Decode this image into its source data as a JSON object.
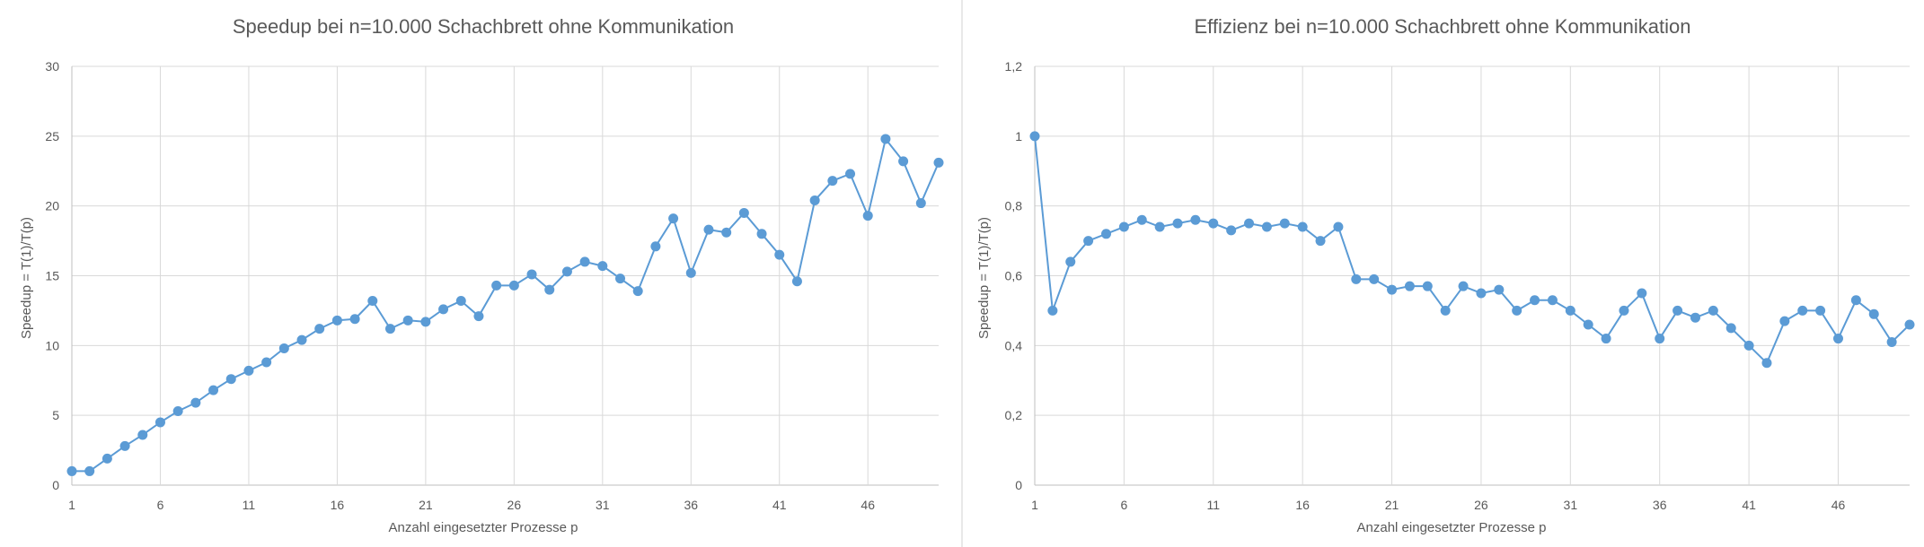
{
  "colors": {
    "series": "#5b9bd5",
    "grid": "#d9d9d9",
    "text": "#595959",
    "divider": "#d0d0d0"
  },
  "chart_data": [
    {
      "type": "line",
      "title": "Speedup bei n=10.000 Schachbrett ohne Kommunikation",
      "xlabel": "Anzahl eingesetzter Prozesse p",
      "ylabel": "Speedup = T(1)/T(p)",
      "xlim": [
        1,
        50
      ],
      "ylim": [
        0,
        30
      ],
      "xticks": [
        1,
        6,
        11,
        16,
        21,
        26,
        31,
        36,
        41,
        46
      ],
      "xtick_labels": [
        "1",
        "6",
        "11",
        "16",
        "21",
        "26",
        "31",
        "36",
        "41",
        "46"
      ],
      "yticks": [
        0,
        5,
        10,
        15,
        20,
        25,
        30
      ],
      "ytick_labels": [
        "0",
        "5",
        "10",
        "15",
        "20",
        "25",
        "30"
      ],
      "grid": true,
      "legend": "none",
      "x": [
        1,
        2,
        3,
        4,
        5,
        6,
        7,
        8,
        9,
        10,
        11,
        12,
        13,
        14,
        15,
        16,
        17,
        18,
        19,
        20,
        21,
        22,
        23,
        24,
        25,
        26,
        27,
        28,
        29,
        30,
        31,
        32,
        33,
        34,
        35,
        36,
        37,
        38,
        39,
        40,
        41,
        42,
        43,
        44,
        45,
        46,
        47,
        48,
        49,
        50
      ],
      "series": [
        {
          "values": [
            1.0,
            1.0,
            1.9,
            2.8,
            3.6,
            4.5,
            5.3,
            5.9,
            6.8,
            7.6,
            8.2,
            8.8,
            9.8,
            10.4,
            11.2,
            11.8,
            11.9,
            13.2,
            11.2,
            11.8,
            11.7,
            12.6,
            13.2,
            12.1,
            14.3,
            14.3,
            15.1,
            14.0,
            15.3,
            16.0,
            15.7,
            14.8,
            13.9,
            17.1,
            19.1,
            15.2,
            18.3,
            18.1,
            19.5,
            18.0,
            16.5,
            14.6,
            20.4,
            21.8,
            22.3,
            19.3,
            24.8,
            23.2,
            20.2,
            23.1
          ]
        }
      ]
    },
    {
      "type": "line",
      "title": "Effizienz bei n=10.000 Schachbrett ohne Kommunikation",
      "xlabel": "Anzahl eingesetzter Prozesse p",
      "ylabel": "Speedup = T(1)/T(p)",
      "xlim": [
        1,
        50
      ],
      "ylim": [
        0,
        1.2
      ],
      "xticks": [
        1,
        6,
        11,
        16,
        21,
        26,
        31,
        36,
        41,
        46
      ],
      "xtick_labels": [
        "1",
        "6",
        "11",
        "16",
        "21",
        "26",
        "31",
        "36",
        "41",
        "46"
      ],
      "yticks": [
        0,
        0.2,
        0.4,
        0.6,
        0.8,
        1.0,
        1.2
      ],
      "ytick_labels": [
        "0",
        "0,2",
        "0,4",
        "0,6",
        "0,8",
        "1",
        "1,2"
      ],
      "grid": true,
      "legend": "none",
      "x": [
        1,
        2,
        3,
        4,
        5,
        6,
        7,
        8,
        9,
        10,
        11,
        12,
        13,
        14,
        15,
        16,
        17,
        18,
        19,
        20,
        21,
        22,
        23,
        24,
        25,
        26,
        27,
        28,
        29,
        30,
        31,
        32,
        33,
        34,
        35,
        36,
        37,
        38,
        39,
        40,
        41,
        42,
        43,
        44,
        45,
        46,
        47,
        48,
        49,
        50
      ],
      "series": [
        {
          "values": [
            1.0,
            0.5,
            0.64,
            0.7,
            0.72,
            0.74,
            0.76,
            0.74,
            0.75,
            0.76,
            0.75,
            0.73,
            0.75,
            0.74,
            0.75,
            0.74,
            0.7,
            0.74,
            0.59,
            0.59,
            0.56,
            0.57,
            0.57,
            0.5,
            0.57,
            0.55,
            0.56,
            0.5,
            0.53,
            0.53,
            0.5,
            0.46,
            0.42,
            0.5,
            0.55,
            0.42,
            0.5,
            0.48,
            0.5,
            0.45,
            0.4,
            0.35,
            0.47,
            0.5,
            0.5,
            0.42,
            0.53,
            0.49,
            0.41,
            0.46
          ]
        }
      ]
    }
  ]
}
